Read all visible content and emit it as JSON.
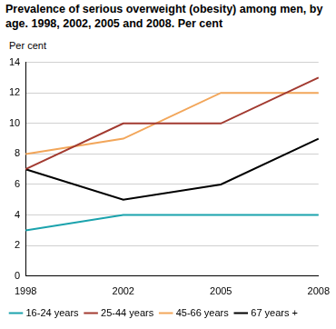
{
  "chart_data": {
    "type": "line",
    "title": "Prevalence of serious overweight (obesity) among men, by age. 1998, 2002, 2005 and 2008. Per cent",
    "y_label": "Per cent",
    "categories": [
      "1998",
      "2002",
      "2005",
      "2008"
    ],
    "series": [
      {
        "name": "16-24 years",
        "color": "#1ba3ad",
        "values": [
          3,
          4,
          4,
          4
        ]
      },
      {
        "name": "25-44 years",
        "color": "#a23a30",
        "values": [
          7,
          10,
          10,
          13
        ]
      },
      {
        "name": "45-66 years",
        "color": "#f2a65a",
        "values": [
          8,
          9,
          12,
          12
        ]
      },
      {
        "name": "67 years +",
        "color": "#000000",
        "values": [
          7,
          5,
          6,
          9
        ]
      }
    ],
    "ylim": [
      0,
      14
    ],
    "yticks": [
      0,
      2,
      4,
      6,
      8,
      10,
      12,
      14
    ],
    "grid": true,
    "legend": "bottom"
  }
}
